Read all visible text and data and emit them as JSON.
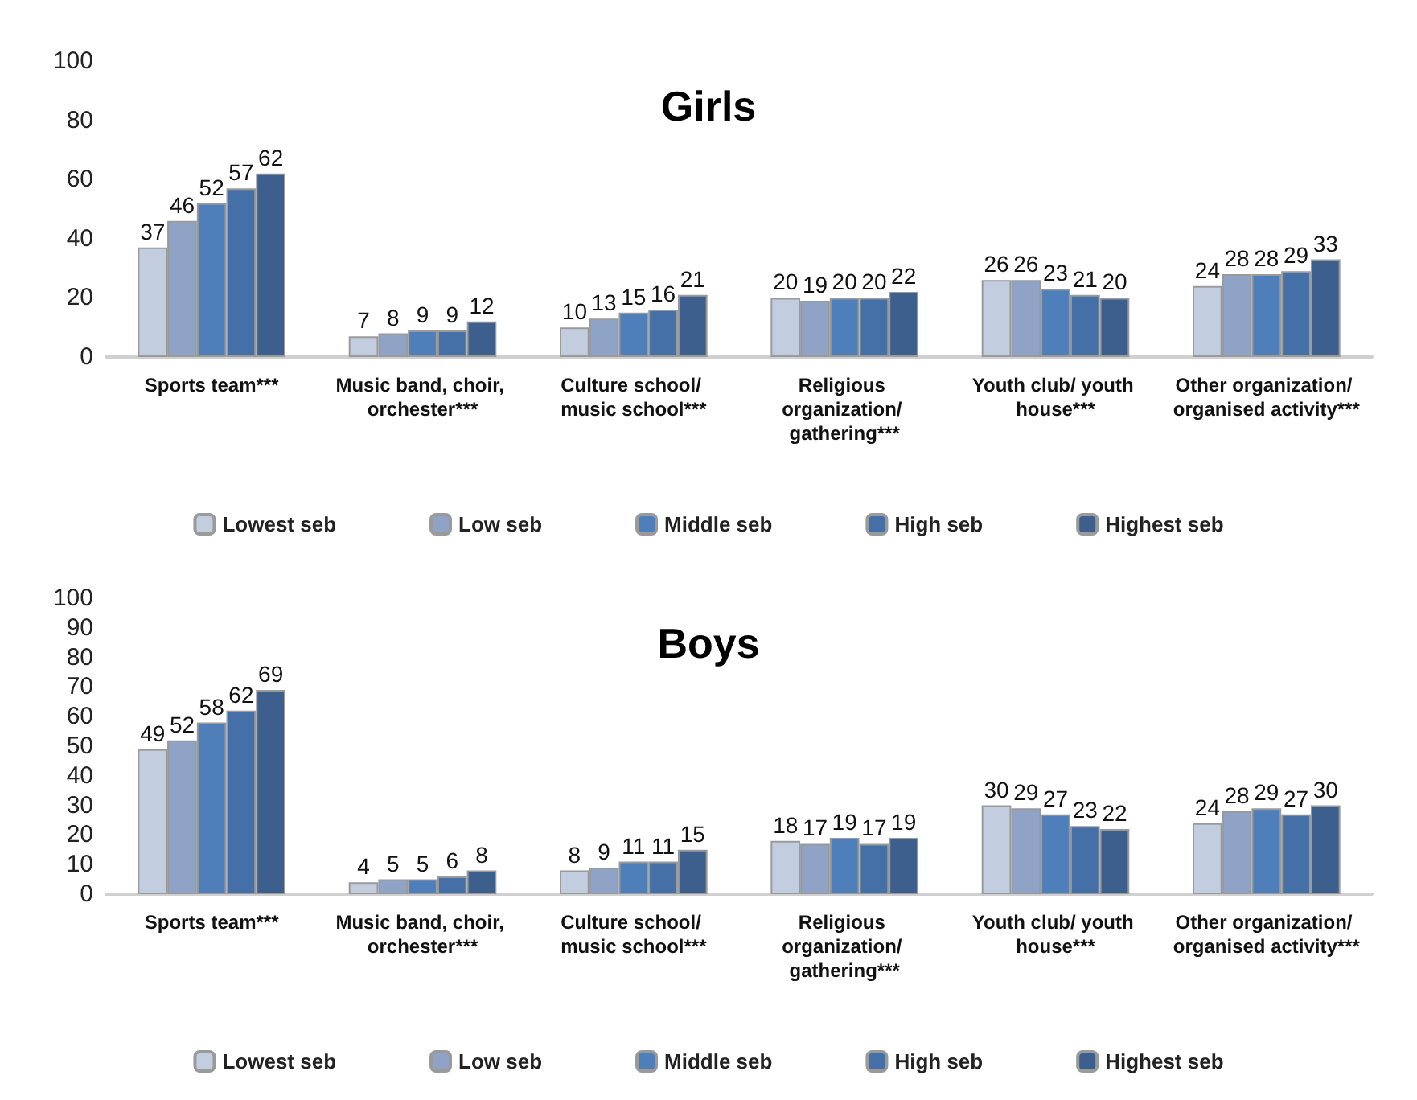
{
  "chart_data": [
    {
      "type": "bar",
      "title": "Girls",
      "categories": [
        "Sports team***",
        "Music band, choir, orchester***",
        "Culture school/ music school***",
        "Religious organization/ gathering***",
        "Youth club/ youth house***",
        "Other organization/ organised activity***"
      ],
      "series": [
        {
          "name": "Lowest seb",
          "color": "#c3cde0",
          "values": [
            37,
            7,
            10,
            20,
            26,
            24
          ]
        },
        {
          "name": "Low seb",
          "color": "#8fa3c6",
          "values": [
            46,
            8,
            13,
            19,
            26,
            28
          ]
        },
        {
          "name": "Middle seb",
          "color": "#4f7fba",
          "values": [
            52,
            9,
            15,
            20,
            23,
            28
          ]
        },
        {
          "name": "High seb",
          "color": "#4570a7",
          "values": [
            57,
            9,
            16,
            20,
            21,
            29
          ]
        },
        {
          "name": "Highest seb",
          "color": "#3c5f8e",
          "values": [
            62,
            12,
            21,
            22,
            20,
            33
          ]
        }
      ],
      "ylim": [
        0,
        100
      ],
      "yticks": [
        0,
        20,
        40,
        60,
        80,
        100
      ],
      "grid": false,
      "legend": "bottom",
      "data_labels": true
    },
    {
      "type": "bar",
      "title": "Boys",
      "categories": [
        "Sports team***",
        "Music band, choir, orchester***",
        "Culture school/ music school***",
        "Religious organization/ gathering***",
        "Youth club/ youth house***",
        "Other organization/ organised activity***"
      ],
      "series": [
        {
          "name": "Lowest seb",
          "color": "#c3cde0",
          "values": [
            49,
            4,
            8,
            18,
            30,
            24
          ]
        },
        {
          "name": "Low seb",
          "color": "#8fa3c6",
          "values": [
            52,
            5,
            9,
            17,
            29,
            28
          ]
        },
        {
          "name": "Middle seb",
          "color": "#4f7fba",
          "values": [
            58,
            5,
            11,
            19,
            27,
            29
          ]
        },
        {
          "name": "High seb",
          "color": "#4570a7",
          "values": [
            62,
            6,
            11,
            17,
            23,
            27
          ]
        },
        {
          "name": "Highest seb",
          "color": "#3c5f8e",
          "values": [
            69,
            8,
            15,
            19,
            22,
            30
          ]
        }
      ],
      "ylim": [
        0,
        100
      ],
      "yticks": [
        0,
        10,
        20,
        30,
        40,
        50,
        60,
        70,
        80,
        90,
        100
      ],
      "grid": false,
      "legend": "bottom",
      "data_labels": true
    }
  ]
}
